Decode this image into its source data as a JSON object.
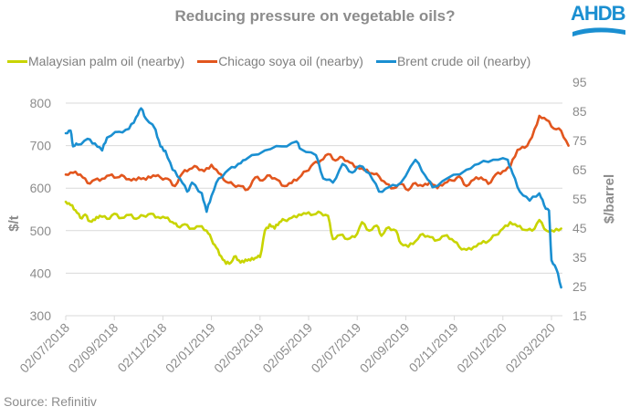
{
  "header": {
    "title": "Reducing pressure on vegetable oils?",
    "logo_text": "AHDB"
  },
  "footer": {
    "source": "Source: Refinitiv"
  },
  "chart_data": {
    "type": "line",
    "title": "Reducing pressure on vegetable oils?",
    "x_unit": "months since 02/07/2018",
    "xlabel": "",
    "ylabel": "$/t",
    "y2label": "$/barrel",
    "ylim": [
      300,
      800
    ],
    "y2lim": [
      15,
      95
    ],
    "yticks": [
      "300",
      "400",
      "500",
      "600",
      "700",
      "800"
    ],
    "y2ticks": [
      "15",
      "25",
      "35",
      "45",
      "55",
      "65",
      "75",
      "85",
      "95"
    ],
    "xticks": [
      "02/07/2018",
      "02/09/2018",
      "02/11/2018",
      "02/01/2019",
      "02/03/2019",
      "02/05/2019",
      "02/07/2019",
      "02/09/2019",
      "02/11/2019",
      "02/01/2020",
      "02/03/2020"
    ],
    "xlim": [
      0,
      20.8
    ],
    "grid": true,
    "legend_position": "top",
    "series": [
      {
        "name": "Malaysian palm oil (nearby)",
        "axis": "left",
        "color": "#c8d400",
        "points": [
          [
            0.0,
            568
          ],
          [
            0.2,
            560
          ],
          [
            0.4,
            548
          ],
          [
            0.6,
            530
          ],
          [
            0.8,
            538
          ],
          [
            1.0,
            522
          ],
          [
            1.2,
            525
          ],
          [
            1.4,
            535
          ],
          [
            1.7,
            528
          ],
          [
            2.0,
            540
          ],
          [
            2.3,
            530
          ],
          [
            2.6,
            537
          ],
          [
            2.9,
            528
          ],
          [
            3.2,
            535
          ],
          [
            3.5,
            540
          ],
          [
            3.8,
            532
          ],
          [
            4.1,
            530
          ],
          [
            4.4,
            520
          ],
          [
            4.6,
            510
          ],
          [
            4.9,
            515
          ],
          [
            5.2,
            505
          ],
          [
            5.5,
            510
          ],
          [
            5.8,
            500
          ],
          [
            6.0,
            480
          ],
          [
            6.2,
            460
          ],
          [
            6.4,
            440
          ],
          [
            6.6,
            422
          ],
          [
            6.8,
            425
          ],
          [
            7.0,
            440
          ],
          [
            7.2,
            425
          ],
          [
            7.4,
            432
          ],
          [
            7.6,
            430
          ],
          [
            7.8,
            436
          ],
          [
            8.0,
            438
          ],
          [
            8.2,
            500
          ],
          [
            8.4,
            515
          ],
          [
            8.6,
            505
          ],
          [
            8.8,
            520
          ],
          [
            9.0,
            525
          ],
          [
            9.3,
            530
          ],
          [
            9.6,
            538
          ],
          [
            9.9,
            540
          ],
          [
            10.2,
            538
          ],
          [
            10.5,
            542
          ],
          [
            10.8,
            535
          ],
          [
            11.0,
            480
          ],
          [
            11.3,
            490
          ],
          [
            11.6,
            480
          ],
          [
            11.9,
            485
          ],
          [
            12.2,
            520
          ],
          [
            12.5,
            500
          ],
          [
            12.8,
            512
          ],
          [
            13.0,
            488
          ],
          [
            13.3,
            508
          ],
          [
            13.6,
            500
          ],
          [
            13.8,
            470
          ],
          [
            14.1,
            462
          ],
          [
            14.4,
            475
          ],
          [
            14.7,
            492
          ],
          [
            15.0,
            485
          ],
          [
            15.3,
            478
          ],
          [
            15.6,
            488
          ],
          [
            15.9,
            480
          ],
          [
            16.2,
            462
          ],
          [
            16.5,
            455
          ],
          [
            16.8,
            462
          ],
          [
            17.1,
            470
          ],
          [
            17.4,
            475
          ],
          [
            17.7,
            490
          ],
          [
            18.0,
            505
          ],
          [
            18.3,
            520
          ],
          [
            18.6,
            510
          ],
          [
            18.9,
            502
          ],
          [
            19.2,
            500
          ],
          [
            19.5,
            525
          ],
          [
            19.8,
            500
          ],
          [
            20.1,
            498
          ],
          [
            20.4,
            505
          ]
        ]
      },
      {
        "name": "Chicago soya oil (nearby)",
        "axis": "left",
        "color": "#e2561e",
        "points": [
          [
            0.0,
            632
          ],
          [
            0.3,
            636
          ],
          [
            0.6,
            632
          ],
          [
            0.9,
            612
          ],
          [
            1.2,
            620
          ],
          [
            1.5,
            622
          ],
          [
            1.8,
            630
          ],
          [
            2.1,
            625
          ],
          [
            2.4,
            628
          ],
          [
            2.7,
            618
          ],
          [
            3.0,
            625
          ],
          [
            3.3,
            620
          ],
          [
            3.6,
            630
          ],
          [
            3.9,
            625
          ],
          [
            4.2,
            622
          ],
          [
            4.5,
            605
          ],
          [
            4.8,
            635
          ],
          [
            5.1,
            645
          ],
          [
            5.4,
            650
          ],
          [
            5.7,
            640
          ],
          [
            6.0,
            655
          ],
          [
            6.3,
            635
          ],
          [
            6.6,
            615
          ],
          [
            6.9,
            608
          ],
          [
            7.2,
            605
          ],
          [
            7.5,
            597
          ],
          [
            7.8,
            625
          ],
          [
            8.1,
            618
          ],
          [
            8.4,
            630
          ],
          [
            8.7,
            620
          ],
          [
            9.0,
            605
          ],
          [
            9.3,
            612
          ],
          [
            9.6,
            624
          ],
          [
            9.9,
            640
          ],
          [
            10.2,
            658
          ],
          [
            10.5,
            665
          ],
          [
            10.8,
            680
          ],
          [
            11.1,
            665
          ],
          [
            11.4,
            672
          ],
          [
            11.7,
            660
          ],
          [
            12.0,
            650
          ],
          [
            12.3,
            642
          ],
          [
            12.6,
            635
          ],
          [
            12.9,
            628
          ],
          [
            13.2,
            610
          ],
          [
            13.5,
            600
          ],
          [
            13.8,
            610
          ],
          [
            14.1,
            595
          ],
          [
            14.4,
            612
          ],
          [
            14.7,
            605
          ],
          [
            15.0,
            615
          ],
          [
            15.3,
            600
          ],
          [
            15.6,
            612
          ],
          [
            15.9,
            618
          ],
          [
            16.2,
            628
          ],
          [
            16.5,
            605
          ],
          [
            16.8,
            620
          ],
          [
            17.1,
            625
          ],
          [
            17.4,
            610
          ],
          [
            17.7,
            632
          ],
          [
            18.0,
            640
          ],
          [
            18.3,
            650
          ],
          [
            18.6,
            690
          ],
          [
            18.9,
            695
          ],
          [
            19.2,
            720
          ],
          [
            19.5,
            770
          ],
          [
            19.8,
            760
          ],
          [
            20.1,
            740
          ],
          [
            20.4,
            735
          ],
          [
            20.7,
            700
          ]
        ]
      },
      {
        "name": "Brent crude oil (nearby)",
        "axis": "right",
        "color": "#1a8fd1",
        "points": [
          [
            0.0,
            77.5
          ],
          [
            0.2,
            78.4
          ],
          [
            0.3,
            73.0
          ],
          [
            0.5,
            73.6
          ],
          [
            0.9,
            75.6
          ],
          [
            1.2,
            74.0
          ],
          [
            1.5,
            71.6
          ],
          [
            1.7,
            76.0
          ],
          [
            2.2,
            78.0
          ],
          [
            2.6,
            79.0
          ],
          [
            2.9,
            83.0
          ],
          [
            3.1,
            86.0
          ],
          [
            3.3,
            82.5
          ],
          [
            3.7,
            78.7
          ],
          [
            3.9,
            73.0
          ],
          [
            4.1,
            71.5
          ],
          [
            4.4,
            65.0
          ],
          [
            4.7,
            62.0
          ],
          [
            5.0,
            57.5
          ],
          [
            5.2,
            60.6
          ],
          [
            5.6,
            57.0
          ],
          [
            5.8,
            50.6
          ],
          [
            6.0,
            56.0
          ],
          [
            6.3,
            62.0
          ],
          [
            6.7,
            65.0
          ],
          [
            7.1,
            67.0
          ],
          [
            7.4,
            68.4
          ],
          [
            8.2,
            71.6
          ],
          [
            8.9,
            73.0
          ],
          [
            9.5,
            74.7
          ],
          [
            9.7,
            72.0
          ],
          [
            10.3,
            70.0
          ],
          [
            10.6,
            62.0
          ],
          [
            11.0,
            60.6
          ],
          [
            11.4,
            67.0
          ],
          [
            11.8,
            64.0
          ],
          [
            12.1,
            66.3
          ],
          [
            12.5,
            63.75
          ],
          [
            12.9,
            57.5
          ],
          [
            13.3,
            59.0
          ],
          [
            13.8,
            60.6
          ],
          [
            14.4,
            68.4
          ],
          [
            14.8,
            63.0
          ],
          [
            15.1,
            59.0
          ],
          [
            15.7,
            62.0
          ],
          [
            16.5,
            65.0
          ],
          [
            17.0,
            67.0
          ],
          [
            17.6,
            68.4
          ],
          [
            18.2,
            68.4
          ],
          [
            18.4,
            63.75
          ],
          [
            18.7,
            57.5
          ],
          [
            19.1,
            54.4
          ],
          [
            19.5,
            56.9
          ],
          [
            19.7,
            52.8
          ],
          [
            19.9,
            51.0
          ],
          [
            20.0,
            34.0
          ],
          [
            20.2,
            31.0
          ],
          [
            20.4,
            24.7
          ]
        ]
      }
    ]
  }
}
